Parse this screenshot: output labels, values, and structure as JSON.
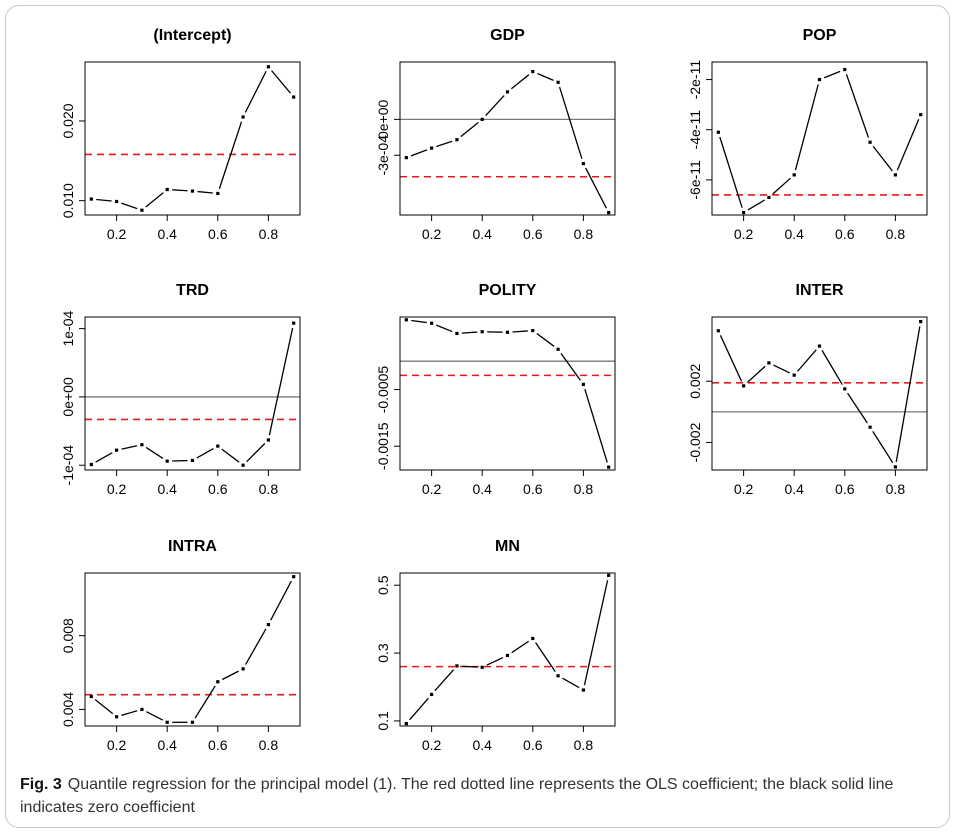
{
  "caption": {
    "label": "Fig. 3",
    "text": "Quantile regression for the principal model (1). The red dotted line represents the OLS coefficient; the black solid line indicates zero coefficient"
  },
  "colors": {
    "ols_line": "#e41a1c",
    "zero_line": "#7a7a7a",
    "series": "#000000"
  },
  "chart_data": [
    {
      "type": "line",
      "title": "(Intercept)",
      "xlabel": "",
      "ylabel": "",
      "x": [
        0.1,
        0.2,
        0.3,
        0.4,
        0.5,
        0.6,
        0.7,
        0.8,
        0.9
      ],
      "y": [
        0.0102,
        0.0099,
        0.0088,
        0.0114,
        0.0112,
        0.0109,
        0.0205,
        0.0268,
        0.023
      ],
      "xticks": [
        "0.2",
        "0.4",
        "0.6",
        "0.8"
      ],
      "yticks": [
        {
          "value": 0.01,
          "label": "0.010"
        },
        {
          "value": 0.02,
          "label": "0.020"
        }
      ],
      "ylim": [
        0.0082,
        0.0274
      ],
      "ols": 0.0158,
      "zero_line": false
    },
    {
      "type": "line",
      "title": "GDP",
      "xlabel": "",
      "ylabel": "",
      "x": [
        0.1,
        0.2,
        0.3,
        0.4,
        0.5,
        0.6,
        0.7,
        0.8,
        0.9
      ],
      "y": [
        -0.00032,
        -0.00024,
        -0.00017,
        0.0,
        0.00023,
        0.0004,
        0.00031,
        -0.00037,
        -0.00078
      ],
      "xticks": [
        "0.2",
        "0.4",
        "0.6",
        "0.8"
      ],
      "yticks": [
        {
          "value": -0.0003,
          "label": "-3e-04"
        },
        {
          "value": 0.0,
          "label": "0e+00"
        }
      ],
      "ylim": [
        -0.0008,
        0.00048
      ],
      "ols": -0.00048,
      "zero_line": true
    },
    {
      "type": "line",
      "title": "POP",
      "xlabel": "",
      "ylabel": "",
      "x": [
        0.1,
        0.2,
        0.3,
        0.4,
        0.5,
        0.6,
        0.7,
        0.8,
        0.9
      ],
      "y": [
        -4.1e-11,
        -7.3e-11,
        -6.7e-11,
        -5.8e-11,
        -2e-11,
        -1.6e-11,
        -4.5e-11,
        -5.8e-11,
        -3.4e-11
      ],
      "xticks": [
        "0.2",
        "0.4",
        "0.6",
        "0.8"
      ],
      "yticks": [
        {
          "value": -6e-11,
          "label": "-6e-11"
        },
        {
          "value": -4e-11,
          "label": "-4e-11"
        },
        {
          "value": -2e-11,
          "label": "-2e-11"
        }
      ],
      "ylim": [
        -7.4e-11,
        -1.3e-11
      ],
      "ols": -6.6e-11,
      "zero_line": false
    },
    {
      "type": "line",
      "title": "TRD",
      "xlabel": "",
      "ylabel": "",
      "x": [
        0.1,
        0.2,
        0.3,
        0.4,
        0.5,
        0.6,
        0.7,
        0.8,
        0.9
      ],
      "y": [
        -9.9e-05,
        -7.8e-05,
        -7e-05,
        -9.4e-05,
        -9.3e-05,
        -7.2e-05,
        -0.0001,
        -6.3e-05,
        0.000108
      ],
      "xticks": [
        "0.2",
        "0.4",
        "0.6",
        "0.8"
      ],
      "yticks": [
        {
          "value": -0.0001,
          "label": "-1e-04"
        },
        {
          "value": 0.0,
          "label": "0e+00"
        },
        {
          "value": 0.0001,
          "label": "1e-04"
        }
      ],
      "ylim": [
        -0.000107,
        0.000117
      ],
      "ols": -3.3e-05,
      "zero_line": true
    },
    {
      "type": "line",
      "title": "POLITY",
      "xlabel": "",
      "ylabel": "",
      "x": [
        0.1,
        0.2,
        0.3,
        0.4,
        0.5,
        0.6,
        0.7,
        0.8,
        0.9
      ],
      "y": [
        0.00073,
        0.00067,
        0.00049,
        0.00052,
        0.00051,
        0.00054,
        0.00021,
        -0.00041,
        -0.00187
      ],
      "xticks": [
        "0.2",
        "0.4",
        "0.6",
        "0.8"
      ],
      "yticks": [
        {
          "value": -0.0015,
          "label": "-0.0015"
        },
        {
          "value": -0.0005,
          "label": "-0.0005"
        }
      ],
      "ylim": [
        -0.00192,
        0.00078
      ],
      "ols": -0.00025,
      "zero_line": true
    },
    {
      "type": "line",
      "title": "INTER",
      "xlabel": "",
      "ylabel": "",
      "x": [
        0.1,
        0.2,
        0.3,
        0.4,
        0.5,
        0.6,
        0.7,
        0.8,
        0.9
      ],
      "y": [
        0.0053,
        0.0017,
        0.0032,
        0.0024,
        0.0043,
        0.0015,
        -0.001,
        -0.0036,
        0.0059
      ],
      "xticks": [
        "0.2",
        "0.4",
        "0.6",
        "0.8"
      ],
      "yticks": [
        {
          "value": -0.002,
          "label": "-0.002"
        },
        {
          "value": 0.002,
          "label": "0.002"
        }
      ],
      "ylim": [
        -0.0038,
        0.0062
      ],
      "ols": 0.0019,
      "zero_line": true
    },
    {
      "type": "line",
      "title": "INTRA",
      "xlabel": "",
      "ylabel": "",
      "x": [
        0.1,
        0.2,
        0.3,
        0.4,
        0.5,
        0.6,
        0.7,
        0.8,
        0.9
      ],
      "y": [
        0.0047,
        0.0036,
        0.004,
        0.0033,
        0.0033,
        0.0055,
        0.0062,
        0.0086,
        0.0112
      ],
      "xticks": [
        "0.2",
        "0.4",
        "0.6",
        "0.8"
      ],
      "yticks": [
        {
          "value": 0.004,
          "label": "0.004"
        },
        {
          "value": 0.008,
          "label": "0.008"
        }
      ],
      "ylim": [
        0.0031,
        0.0114
      ],
      "ols": 0.0048,
      "zero_line": false
    },
    {
      "type": "line",
      "title": "MN",
      "xlabel": "",
      "ylabel": "",
      "x": [
        0.1,
        0.2,
        0.3,
        0.4,
        0.5,
        0.6,
        0.7,
        0.8,
        0.9
      ],
      "y": [
        0.092,
        0.178,
        0.262,
        0.258,
        0.293,
        0.343,
        0.233,
        0.191,
        0.529
      ],
      "xticks": [
        "0.2",
        "0.4",
        "0.6",
        "0.8"
      ],
      "yticks": [
        {
          "value": 0.1,
          "label": "0.1"
        },
        {
          "value": 0.3,
          "label": "0.3"
        },
        {
          "value": 0.5,
          "label": "0.5"
        }
      ],
      "ylim": [
        0.085,
        0.536
      ],
      "ols": 0.26,
      "zero_line": false
    }
  ]
}
